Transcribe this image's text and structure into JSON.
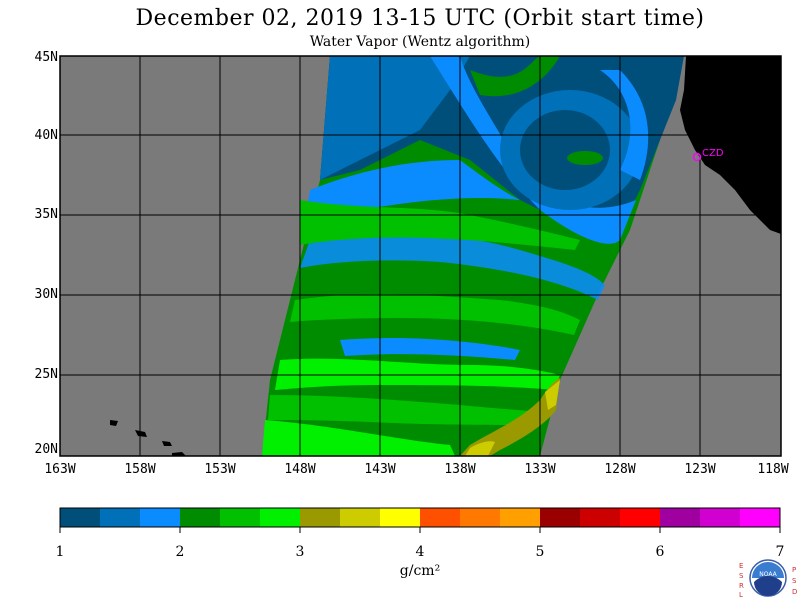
{
  "title": "December 02, 2019  13-15 UTC  (Orbit start time)",
  "subtitle": "Water Vapor (Wentz algorithm)",
  "map": {
    "lat_labels": [
      "45N",
      "40N",
      "35N",
      "30N",
      "25N",
      "20N"
    ],
    "lon_labels": [
      "163W",
      "158W",
      "153W",
      "148W",
      "143W",
      "138W",
      "133W",
      "128W",
      "123W",
      "118W"
    ],
    "station_label": "CZD",
    "station_color": "#ff00ff",
    "no_data_color": "#7a7a7a",
    "land_color": "#000000"
  },
  "colorbar": {
    "colors": [
      "#004f7a",
      "#0070b8",
      "#0a8cff",
      "#008c00",
      "#00c000",
      "#00f000",
      "#9a9a00",
      "#cccc00",
      "#ffff00",
      "#ff5000",
      "#ff7800",
      "#ffa000",
      "#9a0000",
      "#cc0000",
      "#ff0000",
      "#a000a0",
      "#d000d0",
      "#ff00ff"
    ],
    "labels": [
      "1",
      "2",
      "3",
      "4",
      "5",
      "6",
      "7"
    ],
    "unit": "g/cm²"
  },
  "logo": {
    "left_letters": [
      "E",
      "S",
      "R",
      "L"
    ],
    "right_letters": [
      "P",
      "S",
      "D"
    ],
    "emblem_text": "NOAA"
  }
}
